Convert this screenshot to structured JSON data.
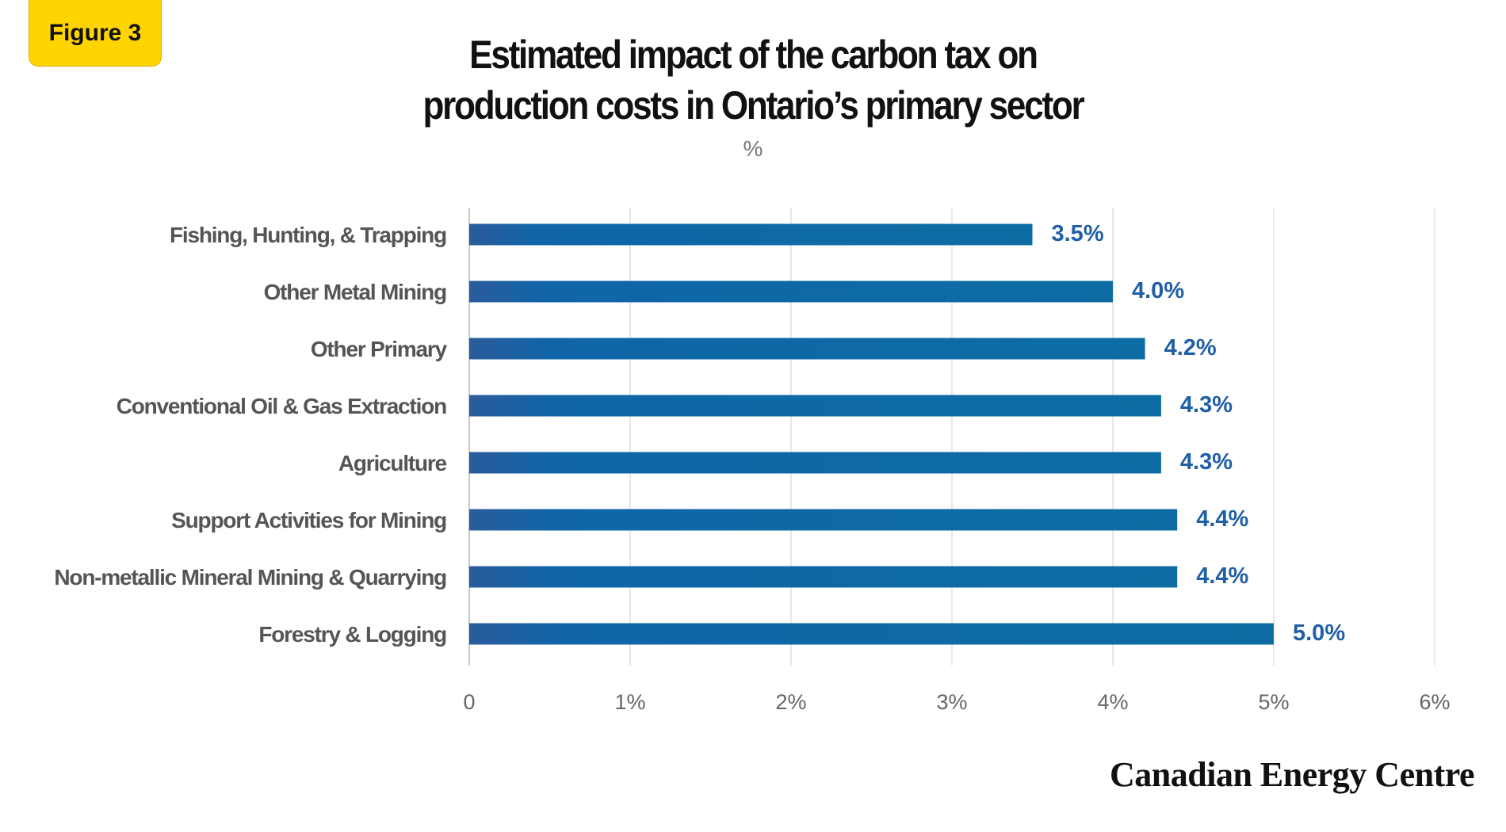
{
  "badge": {
    "label": "Figure 3"
  },
  "header": {
    "title_line1": "Estimated impact of the carbon tax on",
    "title_line2": "production costs in Ontario’s primary sector",
    "unit": "%"
  },
  "brand": {
    "name": "Canadian Energy Centre"
  },
  "colors": {
    "bar_start": "#2b5c9b",
    "bar_end": "#0d6da3",
    "value_label": "#1f5fa6",
    "category_label": "#555555",
    "tick_label": "#666666",
    "grid": "#d9d9d9",
    "badge": "#ffd400"
  },
  "chart_data": {
    "type": "bar",
    "orientation": "horizontal",
    "title": "Estimated impact of the carbon tax on production costs in Ontario’s primary sector",
    "subtitle": "%",
    "categories": [
      "Fishing, Hunting, & Trapping",
      "Other Metal Mining",
      "Other Primary",
      "Conventional Oil & Gas Extraction",
      "Agriculture",
      "Support Activities for Mining",
      "Non-metallic Mineral Mining & Quarrying",
      "Forestry & Logging"
    ],
    "values": [
      3.5,
      4.0,
      4.2,
      4.3,
      4.3,
      4.4,
      4.4,
      5.0
    ],
    "value_labels": [
      "3.5%",
      "4.0%",
      "4.2%",
      "4.3%",
      "4.3%",
      "4.4%",
      "4.4%",
      "5.0%"
    ],
    "xlim": [
      0,
      6
    ],
    "xticks": [
      0,
      1,
      2,
      3,
      4,
      5,
      6
    ],
    "xtick_labels": [
      "0",
      "1%",
      "2%",
      "3%",
      "4%",
      "5%",
      "6%"
    ],
    "xlabel": "",
    "ylabel": "",
    "grid": true,
    "legend": "none"
  }
}
